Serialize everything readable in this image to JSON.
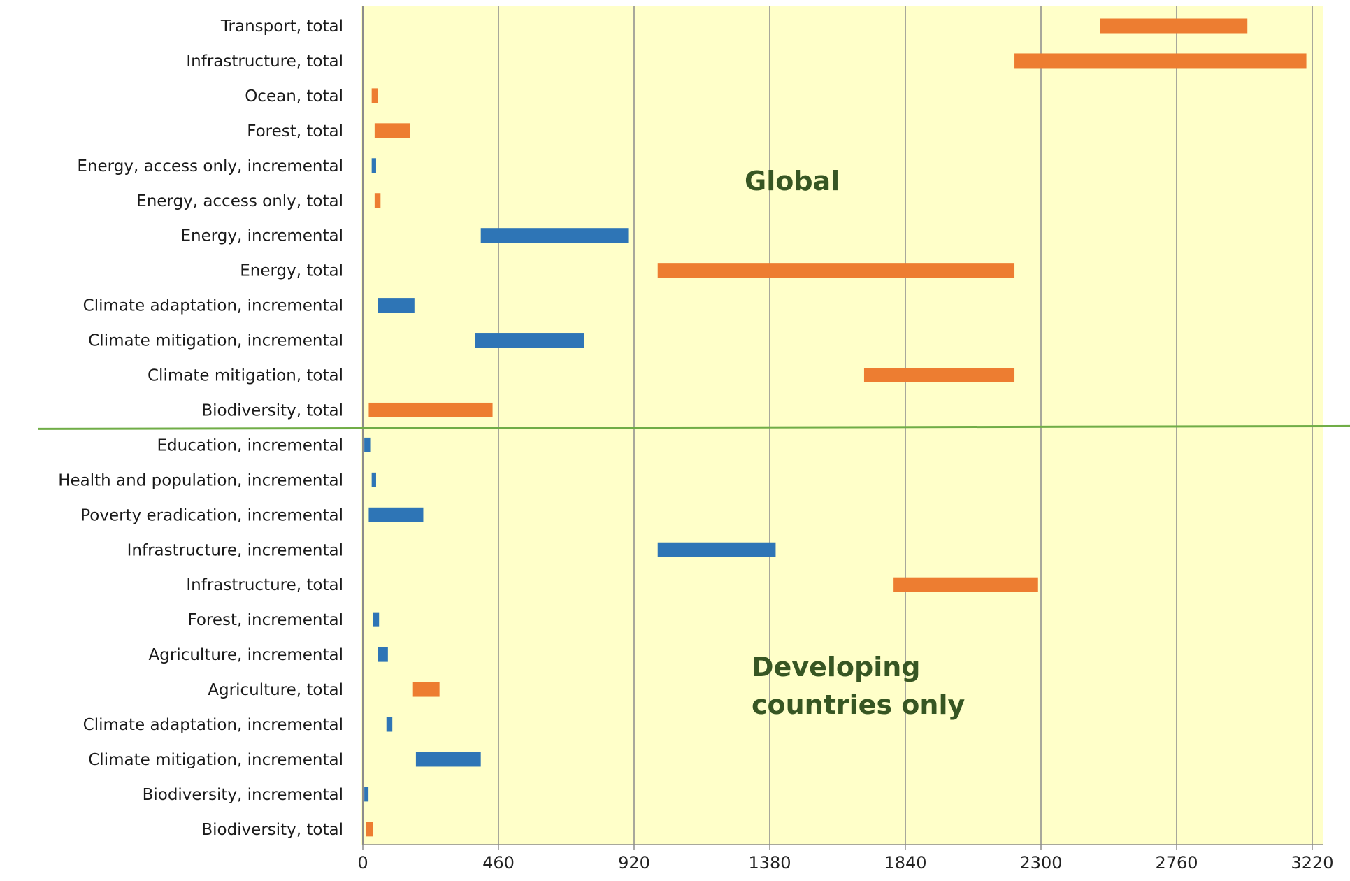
{
  "chart_data": {
    "type": "bar",
    "orientation": "horizontal-floating",
    "title": "",
    "xlabel": "",
    "ylabel": "",
    "xlim": [
      0,
      3220
    ],
    "x_ticks": [
      0,
      460,
      920,
      1380,
      1840,
      2300,
      2760,
      3220
    ],
    "grid": "vertical",
    "colors": {
      "total": "#ED7D31",
      "incremental": "#2E75B6",
      "plot_bg": "#FFFFC9",
      "divider": "#70AD47",
      "annotation": "#375623"
    },
    "annotations": [
      {
        "lines": [
          "Global"
        ],
        "group": "Global"
      },
      {
        "lines": [
          "Developing",
          "countries only"
        ],
        "group": "Developing countries only"
      }
    ],
    "bars": [
      {
        "label": "Transport, total",
        "kind": "total",
        "start": 2500,
        "end": 3000
      },
      {
        "label": "Infrastructure, total",
        "kind": "total",
        "start": 2210,
        "end": 3200
      },
      {
        "label": "Ocean, total",
        "kind": "total",
        "start": 30,
        "end": 50
      },
      {
        "label": "Forest, total",
        "kind": "total",
        "start": 40,
        "end": 160
      },
      {
        "label": "Energy, access only, incremental",
        "kind": "incremental",
        "start": 30,
        "end": 45
      },
      {
        "label": "Energy, access only, total",
        "kind": "total",
        "start": 40,
        "end": 60
      },
      {
        "label": "Energy, incremental",
        "kind": "incremental",
        "start": 400,
        "end": 900
      },
      {
        "label": "Energy, total",
        "kind": "total",
        "start": 1000,
        "end": 2210
      },
      {
        "label": "Climate adaptation, incremental",
        "kind": "incremental",
        "start": 50,
        "end": 175
      },
      {
        "label": "Climate mitigation, incremental",
        "kind": "incremental",
        "start": 380,
        "end": 750
      },
      {
        "label": "Climate mitigation, total",
        "kind": "total",
        "start": 1700,
        "end": 2210
      },
      {
        "label": "Biodiversity, total",
        "kind": "total",
        "start": 20,
        "end": 440
      },
      {
        "label": "Education, incremental",
        "kind": "incremental",
        "start": 5,
        "end": 25
      },
      {
        "label": "Health and population, incremental",
        "kind": "incremental",
        "start": 30,
        "end": 45
      },
      {
        "label": "Poverty eradication, incremental",
        "kind": "incremental",
        "start": 20,
        "end": 205
      },
      {
        "label": "Infrastructure, incremental",
        "kind": "incremental",
        "start": 1000,
        "end": 1400
      },
      {
        "label": "Infrastructure, total",
        "kind": "total",
        "start": 1800,
        "end": 2290
      },
      {
        "label": "Forest, incremental",
        "kind": "incremental",
        "start": 35,
        "end": 55
      },
      {
        "label": "Agriculture, incremental",
        "kind": "incremental",
        "start": 50,
        "end": 85
      },
      {
        "label": "Agriculture, total",
        "kind": "total",
        "start": 170,
        "end": 260
      },
      {
        "label": "Climate adaptation, incremental",
        "kind": "incremental",
        "start": 80,
        "end": 100
      },
      {
        "label": "Climate mitigation, incremental",
        "kind": "incremental",
        "start": 180,
        "end": 400
      },
      {
        "label": "Biodiversity, incremental",
        "kind": "incremental",
        "start": 5,
        "end": 15
      },
      {
        "label": "Biodiversity, total",
        "kind": "total",
        "start": 10,
        "end": 35
      }
    ],
    "divider_after_index": 11
  }
}
